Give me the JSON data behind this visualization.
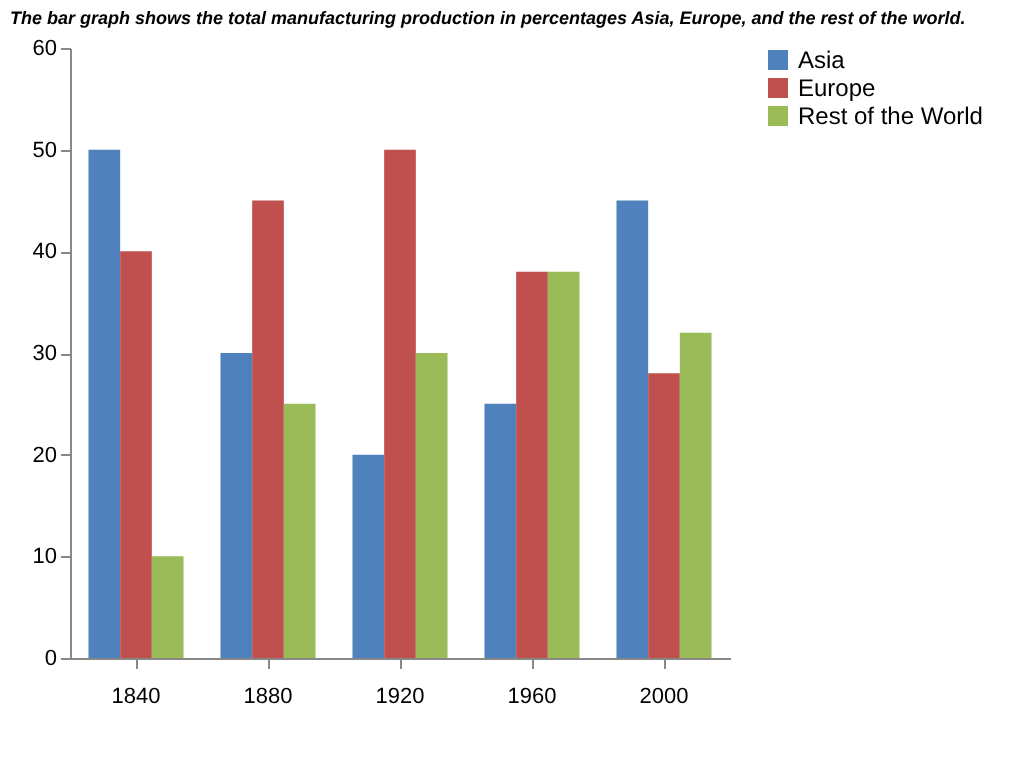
{
  "chart_data": {
    "type": "bar",
    "title": "The bar graph shows the total manufacturing production in percentages Asia, Europe, and the rest of the world.",
    "categories": [
      "1840",
      "1880",
      "1920",
      "1960",
      "2000"
    ],
    "series": [
      {
        "name": "Asia",
        "color": "#4f81bd",
        "values": [
          50,
          30,
          20,
          25,
          45
        ]
      },
      {
        "name": "Europe",
        "color": "#c0504d",
        "values": [
          40,
          45,
          50,
          38,
          28
        ]
      },
      {
        "name": "Rest of the World",
        "color": "#9bbb59",
        "values": [
          10,
          25,
          30,
          38,
          32
        ]
      }
    ],
    "ylim": [
      0,
      60
    ],
    "yticks": [
      0,
      10,
      20,
      30,
      40,
      50,
      60
    ],
    "grid": false,
    "legend": "right"
  }
}
